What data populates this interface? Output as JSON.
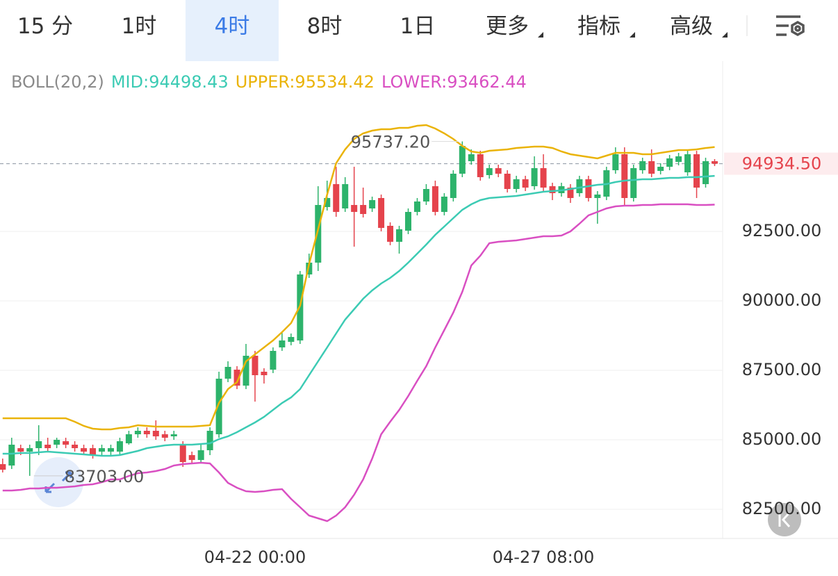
{
  "tabs": [
    "15 分",
    "1时",
    "4时",
    "8时",
    "1日",
    "更多",
    "指标",
    "高级"
  ],
  "active_tab": 2,
  "chart_data": {
    "type": "candlestick",
    "indicator": "BOLL(20,2)",
    "categories": [
      null,
      null,
      null,
      null,
      null,
      null,
      null,
      null,
      null,
      null,
      null,
      null,
      null,
      null,
      null,
      null,
      null,
      null,
      null,
      null,
      null,
      null,
      null,
      null,
      null,
      null,
      null,
      null,
      "04-22 00:00",
      null,
      null,
      null,
      null,
      null,
      null,
      null,
      null,
      null,
      null,
      null,
      null,
      null,
      null,
      null,
      null,
      null,
      null,
      null,
      null,
      null,
      null,
      null,
      null,
      null,
      null,
      null,
      null,
      null,
      null,
      null,
      "04-27 08:00",
      null,
      null,
      null,
      null,
      null,
      null,
      null,
      null,
      null,
      null,
      null,
      null,
      null,
      null,
      null,
      null,
      null,
      null,
      null
    ],
    "open": [
      84125,
      84075,
      84700,
      84575,
      84700,
      84825,
      84825,
      84950,
      84825,
      84700,
      84700,
      84575,
      84575,
      84575,
      84875,
      85200,
      85325,
      85325,
      85200,
      85125,
      84825,
      84450,
      84275,
      84625,
      85200,
      87200,
      87525,
      86950,
      88025,
      87450,
      87525,
      88325,
      88525,
      88575,
      90950,
      91375,
      93375,
      94200,
      93325,
      93450,
      93450,
      93325,
      93700,
      92700,
      92125,
      92525,
      93200,
      93575,
      94125,
      93200,
      93700,
      94575,
      95025,
      95275,
      94525,
      94775,
      94575,
      94025,
      94375,
      94125,
      94775,
      94125,
      93875,
      94075,
      93875,
      94375,
      93700,
      93750,
      94700,
      95275,
      93700,
      94700,
      95025,
      94675,
      94825,
      95000,
      94625,
      95275,
      94200,
      95025
    ],
    "high": [
      84325,
      85075,
      84825,
      84825,
      85525,
      85075,
      85075,
      85075,
      84950,
      84825,
      84825,
      84825,
      84825,
      85075,
      85325,
      85450,
      85450,
      85700,
      85325,
      85325,
      84950,
      84575,
      84825,
      85450,
      87450,
      87825,
      87650,
      88450,
      88200,
      87575,
      88325,
      88875,
      88825,
      91075,
      91700,
      94125,
      94325,
      94825,
      94450,
      94825,
      94075,
      93750,
      93825,
      92825,
      92700,
      93325,
      93700,
      94200,
      94325,
      93875,
      94700,
      95737.2,
      95450,
      95400,
      94900,
      94900,
      94700,
      94500,
      94500,
      95200,
      95275,
      94250,
      94250,
      94200,
      94500,
      94500,
      93950,
      94825,
      95525,
      95525,
      94900,
      95150,
      95450,
      94950,
      95250,
      95325,
      95400,
      95400,
      95150,
      95100
    ],
    "low": [
      83825,
      83950,
      84450,
      83703,
      84450,
      84575,
      84700,
      84700,
      84575,
      84450,
      84325,
      84450,
      84450,
      84450,
      84825,
      85075,
      85075,
      85000,
      84950,
      85000,
      84025,
      84150,
      84150,
      84450,
      85075,
      87075,
      86825,
      86825,
      86375,
      87025,
      87400,
      88200,
      88400,
      88450,
      90825,
      91075,
      93250,
      93025,
      93200,
      91950,
      93000,
      93200,
      92500,
      92000,
      91700,
      92400,
      93075,
      93450,
      93075,
      93075,
      93575,
      94450,
      94900,
      94325,
      94400,
      94450,
      93900,
      93900,
      93950,
      94000,
      93950,
      93625,
      93750,
      93525,
      93750,
      93575,
      92775,
      93625,
      94575,
      93450,
      93575,
      94575,
      94450,
      94550,
      94700,
      94875,
      94500,
      93700,
      94075,
      94850
    ],
    "close": [
      83925,
      84825,
      84575,
      84700,
      84950,
      84700,
      85000,
      84825,
      84700,
      84575,
      84450,
      84700,
      84700,
      84950,
      85200,
      85325,
      85200,
      85125,
      85075,
      85200,
      84200,
      84275,
      84625,
      85325,
      87200,
      87625,
      86950,
      88025,
      87325,
      87325,
      88200,
      88575,
      88700,
      90950,
      91375,
      93450,
      93700,
      93200,
      94200,
      93200,
      93125,
      93625,
      92625,
      92125,
      92575,
      93200,
      93575,
      94025,
      93200,
      93750,
      94575,
      95575,
      95275,
      94450,
      94775,
      94575,
      94025,
      94375,
      94075,
      94775,
      94075,
      93875,
      94125,
      93700,
      94375,
      93700,
      93825,
      94700,
      95275,
      93700,
      94775,
      95025,
      94575,
      94825,
      95125,
      95200,
      95275,
      94075,
      95025,
      94934.5
    ],
    "up_color": "#2db36b",
    "down_color": "#e5434c",
    "series": [
      {
        "name": "MID",
        "legend_label": "MID:94498.43",
        "color": "#3ccbb4",
        "values": [
          84500,
          84500,
          84525,
          84525,
          84550,
          84575,
          84550,
          84525,
          84500,
          84475,
          84450,
          84425,
          84425,
          84450,
          84525,
          84600,
          84700,
          84750,
          84800,
          84825,
          84825,
          84825,
          84850,
          84875,
          85025,
          85125,
          85275,
          85450,
          85625,
          85825,
          86075,
          86325,
          86525,
          86825,
          87325,
          87825,
          88325,
          88825,
          89325,
          89700,
          90075,
          90375,
          90625,
          90825,
          91075,
          91375,
          91700,
          92025,
          92375,
          92675,
          92975,
          93275,
          93475,
          93625,
          93700,
          93725,
          93750,
          93775,
          93825,
          93875,
          93925,
          93950,
          93975,
          94025,
          94075,
          94125,
          94175,
          94200,
          94275,
          94325,
          94350,
          94375,
          94375,
          94400,
          94425,
          94425,
          94450,
          94450,
          94475,
          94498.43
        ]
      },
      {
        "name": "UPPER",
        "legend_label": "UPPER:95534.42",
        "color": "#eab308",
        "values": [
          85775,
          85775,
          85775,
          85775,
          85775,
          85775,
          85775,
          85775,
          85650,
          85500,
          85400,
          85375,
          85375,
          85425,
          85450,
          85525,
          85500,
          85475,
          85475,
          85475,
          85475,
          85475,
          85500,
          85525,
          86325,
          86825,
          87075,
          87825,
          88075,
          88325,
          88575,
          88875,
          89200,
          89825,
          91325,
          92575,
          93825,
          94950,
          95450,
          95825,
          96025,
          96125,
          96175,
          96175,
          96225,
          96225,
          96300,
          96325,
          96200,
          96025,
          95825,
          95575,
          95375,
          95325,
          95400,
          95425,
          95450,
          95500,
          95525,
          95550,
          95550,
          95500,
          95375,
          95275,
          95225,
          95175,
          95125,
          95225,
          95325,
          95325,
          95325,
          95275,
          95275,
          95325,
          95375,
          95425,
          95425,
          95450,
          95500,
          95534.42
        ]
      },
      {
        "name": "LOWER",
        "legend_label": "LOWER:93462.44",
        "color": "#d94fc2",
        "values": [
          83175,
          83175,
          83200,
          83250,
          83250,
          83275,
          83275,
          83300,
          83325,
          83375,
          83400,
          83475,
          83575,
          83575,
          83700,
          83800,
          83825,
          83875,
          83950,
          84075,
          84125,
          84150,
          84175,
          84150,
          83825,
          83450,
          83275,
          83150,
          83125,
          83150,
          83200,
          83225,
          82875,
          82575,
          82275,
          82175,
          82075,
          82275,
          82575,
          83025,
          83575,
          84325,
          85200,
          85650,
          86075,
          86575,
          87125,
          87650,
          88325,
          88950,
          89575,
          90325,
          91275,
          91625,
          92075,
          92125,
          92150,
          92175,
          92225,
          92275,
          92325,
          92325,
          92350,
          92500,
          92775,
          93075,
          93200,
          93325,
          93400,
          93425,
          93425,
          93450,
          93450,
          93475,
          93475,
          93475,
          93475,
          93450,
          93450,
          93462.44
        ]
      }
    ],
    "ylim": [
      81450,
      98625
    ],
    "yticks": [
      {
        "value": 82500,
        "label": "82500.00"
      },
      {
        "value": 85000,
        "label": "85000.00"
      },
      {
        "value": 87500,
        "label": "87500.00"
      },
      {
        "value": 90000,
        "label": "90000.00"
      },
      {
        "value": 92500,
        "label": "92500.00"
      }
    ],
    "grid": true,
    "annotations": [
      {
        "text": "95737.20",
        "value": 95737.2,
        "kind": "high"
      },
      {
        "text": "83703.00",
        "value": 83703,
        "kind": "low"
      }
    ],
    "last_price": {
      "value": 94934.5,
      "label": "94934.50"
    }
  }
}
